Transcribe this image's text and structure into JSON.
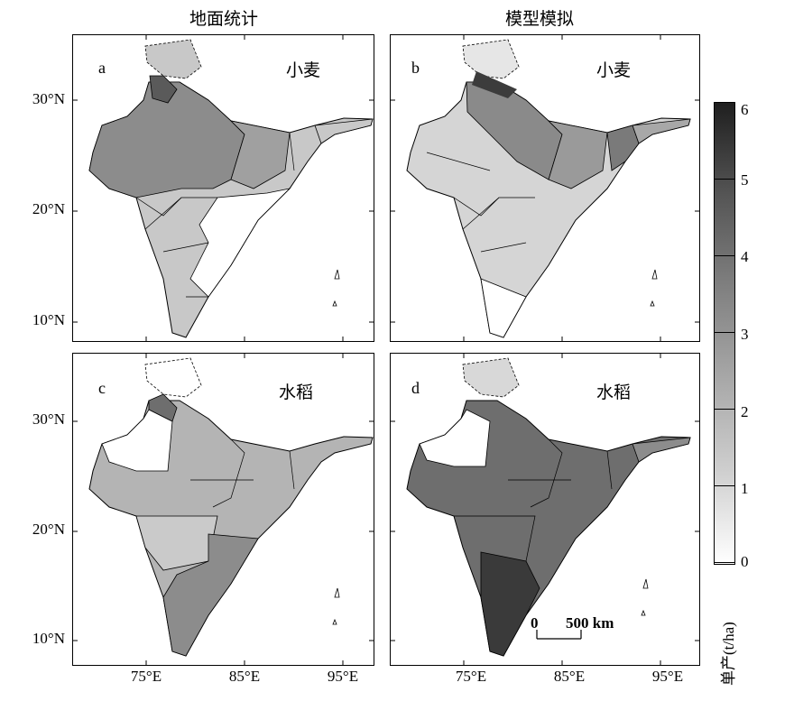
{
  "columns": {
    "left": "地面统计",
    "right": "模型模拟"
  },
  "panels": [
    {
      "letter": "a",
      "crop": "小麦"
    },
    {
      "letter": "b",
      "crop": "小麦"
    },
    {
      "letter": "c",
      "crop": "水稻"
    },
    {
      "letter": "d",
      "crop": "水稻"
    }
  ],
  "lat_labels": [
    "30°N",
    "20°N",
    "10°N"
  ],
  "lon_labels": [
    "75°E",
    "85°E",
    "95°E"
  ],
  "colorbar": {
    "unit": "单产(t/ha)",
    "ticks": [
      "6",
      "5",
      "4",
      "3",
      "2",
      "1",
      "0"
    ],
    "min": 0,
    "max": 6,
    "dark_color": "#1f1f1f",
    "light_color": "#ffffff"
  },
  "scale_bar": {
    "start": "0",
    "end": "500 km"
  }
}
